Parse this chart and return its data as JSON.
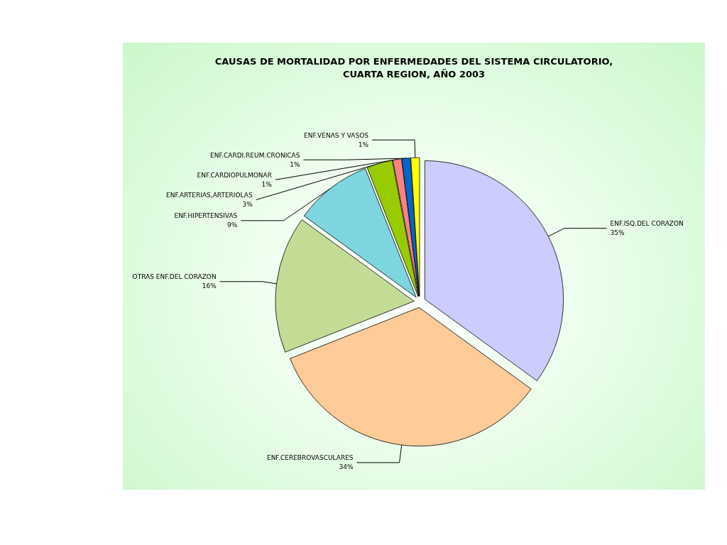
{
  "chart_data": {
    "type": "pie",
    "title": "CAUSAS DE MORTALIDAD POR ENFERMEDADES DEL SISTEMA CIRCULATORIO,\nCUARTA REGION, AÑO 2003",
    "categories": [
      "ENF.ISQ.DEL CORAZON",
      "ENF.CEREBROVASCULARES",
      "OTRAS ENF.DEL CORAZON",
      "ENF.HIPERTENSIVAS",
      "ENF.ARTERIAS,ARTERIOLAS",
      "ENF.CARDIOPULMONAR",
      "ENF.CARDI.REUM.CRONICAS",
      "ENF.VENAS Y VASOS"
    ],
    "values": [
      35,
      34,
      16,
      9,
      3,
      1,
      1,
      1
    ],
    "value_labels": [
      "35%",
      "34%",
      "16%",
      "9%",
      "3%",
      "1%",
      "1%",
      "1%"
    ],
    "colors": [
      "#ccccff",
      "#ffcc99",
      "#c3dc95",
      "#7dd6df",
      "#99cc00",
      "#ff8080",
      "#0066cc",
      "#ffff00"
    ],
    "legend": false
  }
}
